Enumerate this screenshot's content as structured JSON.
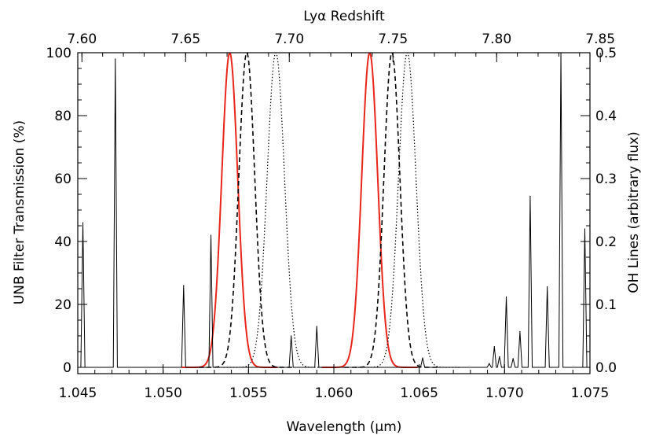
{
  "chart_data": {
    "type": "line",
    "title": "",
    "top_axis": {
      "label": "Lyα Redshift",
      "range": [
        7.598,
        7.845
      ],
      "ticks": [
        "7.60",
        "7.65",
        "7.70",
        "7.75",
        "7.80",
        "7.85"
      ]
    },
    "x_axis": {
      "label": "Wavelength (μm)",
      "range": [
        1.045,
        1.075
      ],
      "ticks": [
        "1.045",
        "1.050",
        "1.055",
        "1.060",
        "1.065",
        "1.070",
        "1.075"
      ]
    },
    "y_left": {
      "label": "UNB Filter Transmission (%)",
      "range": [
        -2,
        100
      ],
      "ticks": [
        "0",
        "20",
        "40",
        "60",
        "80",
        "100"
      ]
    },
    "y_right": {
      "label": "OH Lines (arbitrary flux)",
      "range": [
        -0.01,
        0.5
      ],
      "ticks": [
        "0.0",
        "0.1",
        "0.2",
        "0.3",
        "0.4",
        "0.5"
      ]
    },
    "filters": [
      {
        "style": "solid",
        "color": "#e8261c",
        "center": 1.0539,
        "fwhm": 0.0011,
        "peak": 100
      },
      {
        "style": "dashed",
        "color": "#000000",
        "center": 1.0549,
        "fwhm": 0.0011,
        "peak": 100
      },
      {
        "style": "dotted",
        "color": "#000000",
        "center": 1.0566,
        "fwhm": 0.0012,
        "peak": 100
      },
      {
        "style": "solid",
        "color": "#e8261c",
        "center": 1.0621,
        "fwhm": 0.0011,
        "peak": 100
      },
      {
        "style": "dashed",
        "color": "#000000",
        "center": 1.0634,
        "fwhm": 0.0011,
        "peak": 100
      },
      {
        "style": "dotted",
        "color": "#000000",
        "center": 1.0643,
        "fwhm": 0.0012,
        "peak": 100
      }
    ],
    "oh_lines": [
      {
        "x": 1.0453,
        "flux": 0.23
      },
      {
        "x": 1.0472,
        "flux": 0.49
      },
      {
        "x": 1.0512,
        "flux": 0.13
      },
      {
        "x": 1.0528,
        "flux": 0.21
      },
      {
        "x": 1.0575,
        "flux": 0.05
      },
      {
        "x": 1.059,
        "flux": 0.065
      },
      {
        "x": 1.0652,
        "flux": 0.015
      },
      {
        "x": 1.0691,
        "flux": 0.006
      },
      {
        "x": 1.0694,
        "flux": 0.033
      },
      {
        "x": 1.0697,
        "flux": 0.017
      },
      {
        "x": 1.0701,
        "flux": 0.112
      },
      {
        "x": 1.0705,
        "flux": 0.014
      },
      {
        "x": 1.0709,
        "flux": 0.057
      },
      {
        "x": 1.0715,
        "flux": 0.272
      },
      {
        "x": 1.0725,
        "flux": 0.128
      },
      {
        "x": 1.0733,
        "flux": 0.5
      },
      {
        "x": 1.0747,
        "flux": 0.22
      }
    ]
  }
}
